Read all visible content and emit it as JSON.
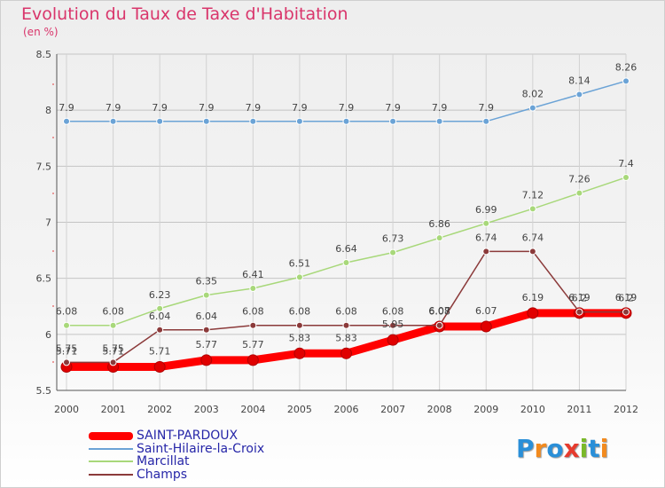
{
  "header": {
    "title": "Evolution du Taux de Taxe d'Habitation",
    "subtitle": "(en %)"
  },
  "logo": {
    "text": "Proxiti",
    "letter_colors": [
      "#2a8fd8",
      "#f28a1e",
      "#2a8fd8",
      "#e63b2e",
      "#7ab929",
      "#2a8fd8",
      "#f28a1e"
    ]
  },
  "chart_data": {
    "type": "line",
    "x": [
      "2000",
      "2001",
      "2002",
      "2003",
      "2004",
      "2005",
      "2006",
      "2007",
      "2008",
      "2009",
      "2010",
      "2011",
      "2012"
    ],
    "ylim": [
      5.5,
      8.5
    ],
    "yticks": [
      "5.5",
      "6",
      "6.5",
      "7",
      "7.5",
      "8",
      "8.5"
    ],
    "grid": true,
    "legend_position": "bottom-left",
    "series": [
      {
        "name": "SAINT-PARDOUX",
        "color": "#ff0000",
        "values": [
          5.71,
          5.71,
          5.71,
          5.77,
          5.77,
          5.83,
          5.83,
          5.95,
          6.07,
          6.07,
          6.19,
          6.19,
          6.19
        ],
        "labels": [
          "5.71",
          "5.71",
          "5.71",
          "5.77",
          "5.77",
          "5.83",
          "5.83",
          "5.95",
          "6.07",
          "6.07",
          "6.19",
          "6.19",
          "6.19"
        ]
      },
      {
        "name": "Saint-Hilaire-la-Croix",
        "color": "#6ba3d6",
        "values": [
          7.9,
          7.9,
          7.9,
          7.9,
          7.9,
          7.9,
          7.9,
          7.9,
          7.9,
          7.9,
          8.02,
          8.14,
          8.26
        ],
        "labels": [
          "7.9",
          "7.9",
          "7.9",
          "7.9",
          "7.9",
          "7.9",
          "7.9",
          "7.9",
          "7.9",
          "7.9",
          "8.02",
          "8.14",
          "8.26"
        ]
      },
      {
        "name": "Marcillat",
        "color": "#a8d87a",
        "values": [
          6.08,
          6.08,
          6.23,
          6.35,
          6.41,
          6.51,
          6.64,
          6.73,
          6.86,
          6.99,
          7.12,
          7.26,
          7.4
        ],
        "labels": [
          "6.08",
          "6.08",
          "6.23",
          "6.35",
          "6.41",
          "6.51",
          "6.64",
          "6.73",
          "6.86",
          "6.99",
          "7.12",
          "7.26",
          "7.4"
        ]
      },
      {
        "name": "Champs",
        "color": "#8b3a3a",
        "values": [
          5.75,
          5.75,
          6.04,
          6.04,
          6.08,
          6.08,
          6.08,
          6.08,
          6.08,
          6.74,
          6.74,
          6.2,
          6.2
        ],
        "labels": [
          "5.75",
          "5.75",
          "6.04",
          "6.04",
          "6.08",
          "6.08",
          "6.08",
          "6.08",
          "6.08",
          "6.74",
          "6.74",
          "6.2",
          "6.2"
        ]
      }
    ]
  }
}
